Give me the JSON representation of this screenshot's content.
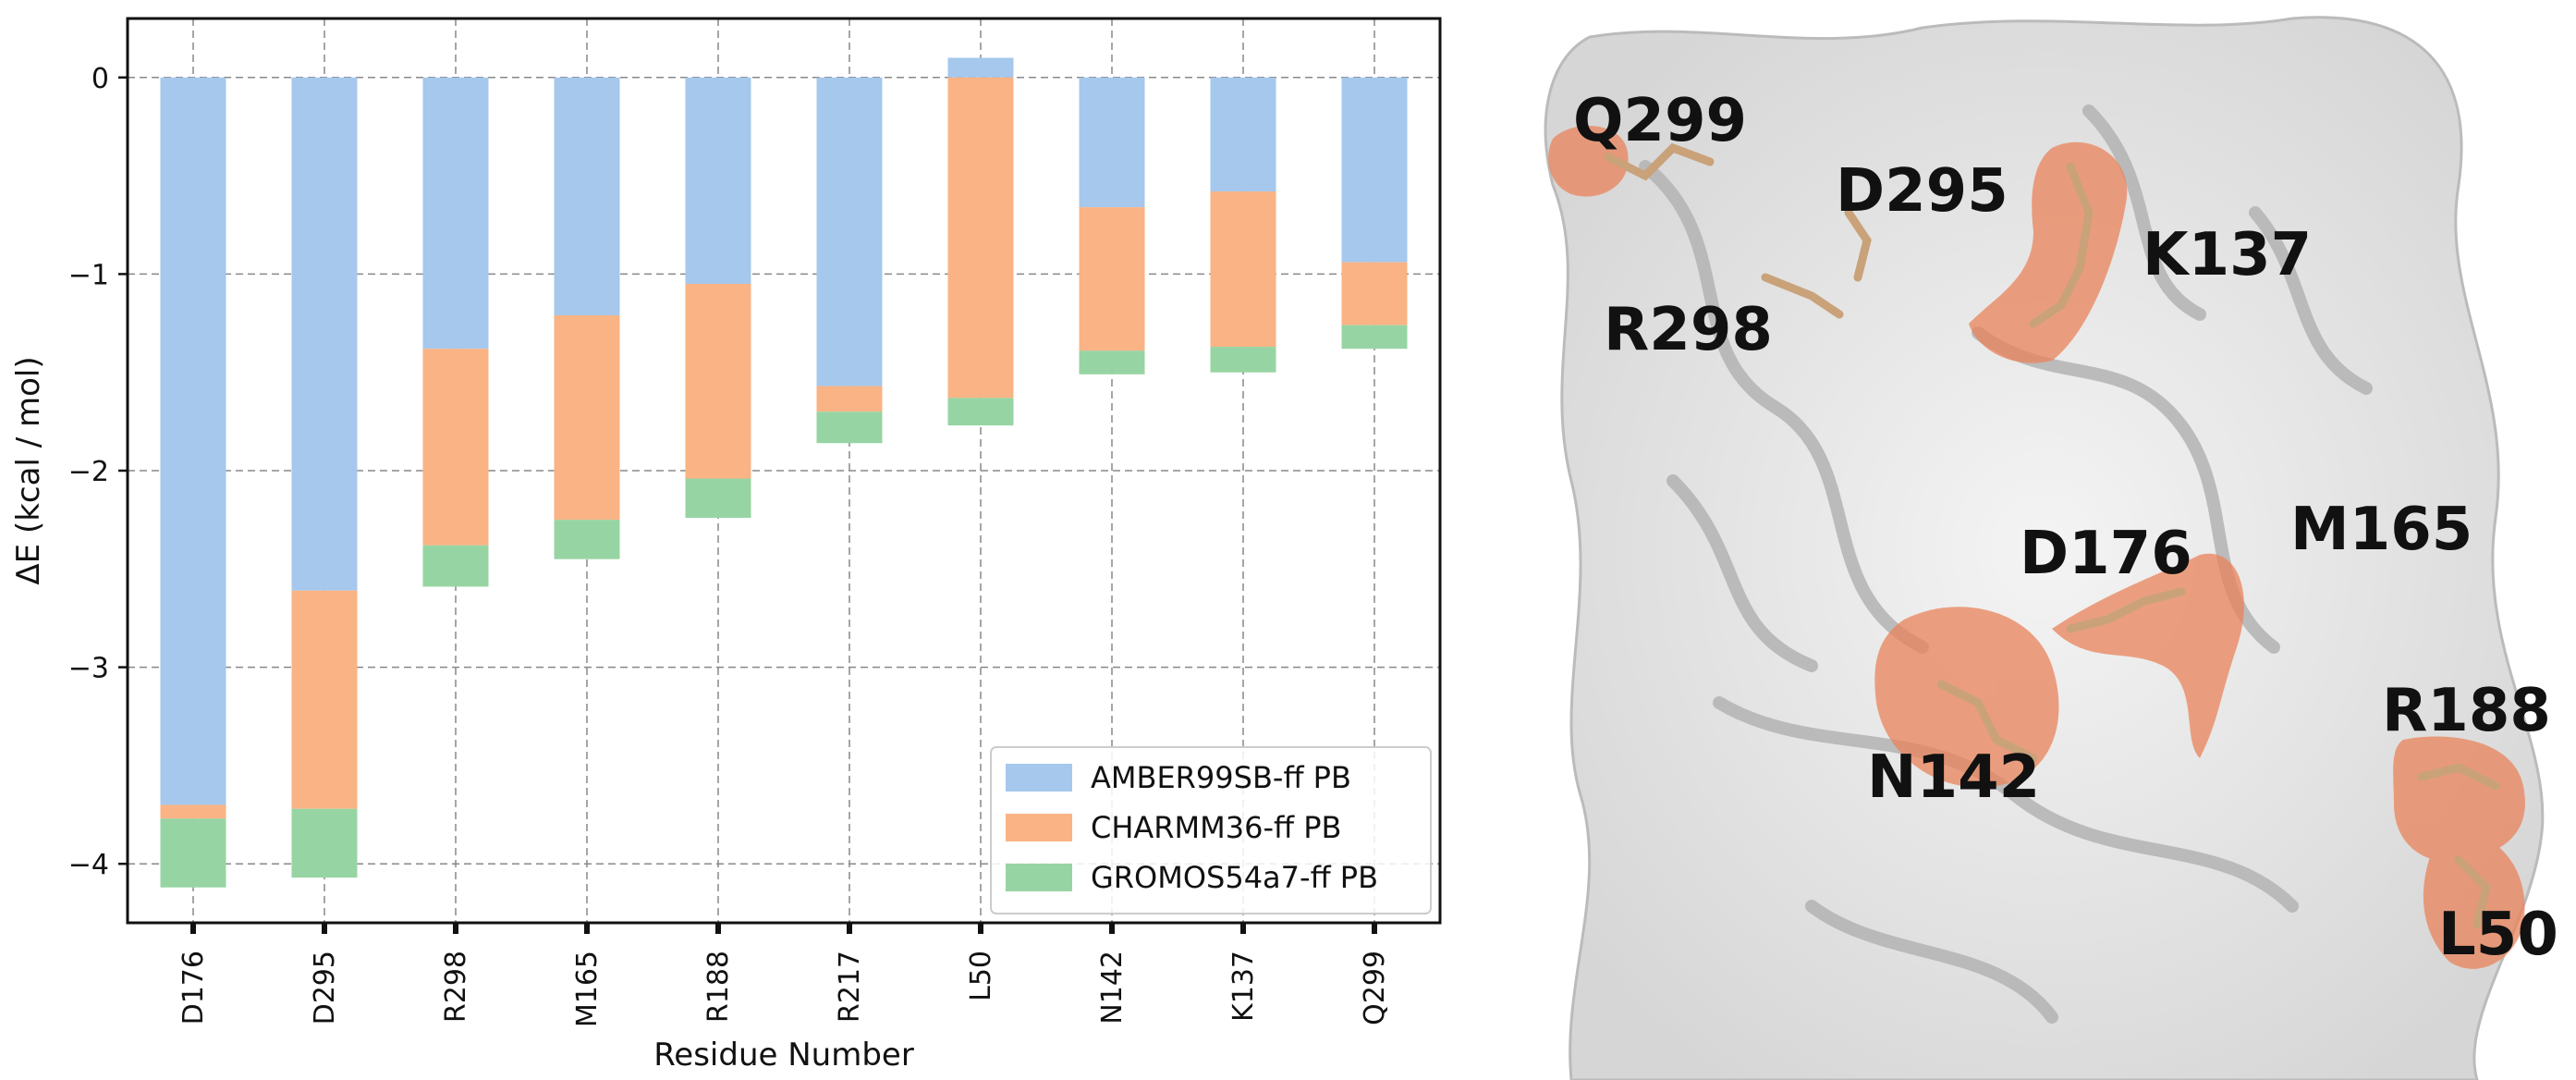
{
  "chart_data": {
    "type": "bar",
    "stacked": true,
    "categories": [
      "D176",
      "D295",
      "R298",
      "M165",
      "R188",
      "R217",
      "L50",
      "N142",
      "K137",
      "Q299"
    ],
    "series": [
      {
        "name": "AMBER99SB-ff PB",
        "color": "#a5c8ec",
        "values": [
          -3.7,
          -2.61,
          -1.38,
          -1.21,
          -1.05,
          -1.57,
          0.1,
          -0.66,
          -0.58,
          -0.94
        ]
      },
      {
        "name": "CHARMM36-ff PB",
        "color": "#f9b384",
        "values": [
          -0.07,
          -1.11,
          -1.0,
          -1.04,
          -0.99,
          -0.13,
          -1.63,
          -0.73,
          -0.79,
          -0.32
        ]
      },
      {
        "name": "GROMOS54a7-ff PB",
        "color": "#97d4a3",
        "values": [
          -0.35,
          -0.35,
          -0.21,
          -0.2,
          -0.2,
          -0.16,
          -0.14,
          -0.12,
          -0.13,
          -0.12
        ]
      }
    ],
    "xlabel": "Residue Number",
    "ylabel": "ΔE (kcal / mol)",
    "ylim": [
      -4.3,
      0.3
    ],
    "yticks": [
      "−4",
      "−3",
      "−2",
      "−1",
      "0"
    ],
    "ytick_values": [
      -4,
      -3,
      -2,
      -1,
      0
    ],
    "grid": true,
    "legend_position": "lower-right"
  },
  "structure_panel": {
    "labels": [
      "Q299",
      "D295",
      "K137",
      "R298",
      "D176",
      "M165",
      "R188",
      "N142",
      "L50"
    ],
    "highlight_color": "#e9835a"
  }
}
